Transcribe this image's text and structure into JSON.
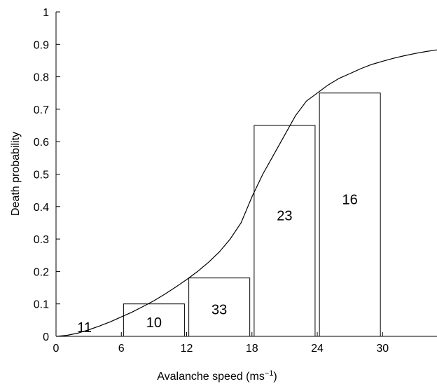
{
  "chart_data": {
    "type": "bar",
    "xlabel": "Avalanche speed (ms",
    "xlabel_sup": "−1",
    "xlabel_end": ")",
    "ylabel": "Death probability",
    "xlim": [
      0,
      35
    ],
    "ylim": [
      0,
      1
    ],
    "x_ticks": [
      {
        "value": 0,
        "label": "0"
      },
      {
        "value": 6,
        "label": "6"
      },
      {
        "value": 12,
        "label": "12"
      },
      {
        "value": 18,
        "label": "18"
      },
      {
        "value": 24,
        "label": "24"
      },
      {
        "value": 30,
        "label": "30"
      }
    ],
    "y_ticks": [
      {
        "value": 0,
        "label": "0"
      },
      {
        "value": 0.1,
        "label": "0.1"
      },
      {
        "value": 0.2,
        "label": "0.2"
      },
      {
        "value": 0.3,
        "label": "0.3"
      },
      {
        "value": 0.4,
        "label": "0.4"
      },
      {
        "value": 0.5,
        "label": "0.5"
      },
      {
        "value": 0.6,
        "label": "0.6"
      },
      {
        "value": 0.7,
        "label": "0.7"
      },
      {
        "value": 0.8,
        "label": "0.8"
      },
      {
        "value": 0.9,
        "label": "0.9"
      },
      {
        "value": 1,
        "label": "1"
      }
    ],
    "bars": [
      {
        "x0": 0,
        "x1": 6,
        "value": 0,
        "label": "11"
      },
      {
        "x0": 6,
        "x1": 12,
        "value": 0.1,
        "label": "10"
      },
      {
        "x0": 12,
        "x1": 18,
        "value": 0.18,
        "label": "33"
      },
      {
        "x0": 18,
        "x1": 24,
        "value": 0.65,
        "label": "23"
      },
      {
        "x0": 24,
        "x1": 30,
        "value": 0.75,
        "label": "16"
      }
    ],
    "curve": {
      "x": [
        0,
        1,
        2,
        3,
        4,
        5,
        6,
        7,
        8,
        9,
        10,
        11,
        12,
        13,
        14,
        15,
        16,
        17,
        18,
        19,
        20,
        21,
        22,
        23,
        24,
        25,
        26,
        27,
        28,
        29,
        30,
        31,
        32,
        33,
        34,
        35
      ],
      "y": [
        0,
        0.003,
        0.01,
        0.02,
        0.032,
        0.045,
        0.06,
        0.075,
        0.092,
        0.11,
        0.13,
        0.152,
        0.175,
        0.2,
        0.228,
        0.26,
        0.3,
        0.35,
        0.43,
        0.5,
        0.56,
        0.62,
        0.68,
        0.725,
        0.75,
        0.775,
        0.795,
        0.81,
        0.825,
        0.838,
        0.848,
        0.857,
        0.865,
        0.872,
        0.878,
        0.883
      ]
    },
    "grid": false,
    "colors": {
      "bar_fill": "#ffffff",
      "stroke": "#000000"
    }
  }
}
